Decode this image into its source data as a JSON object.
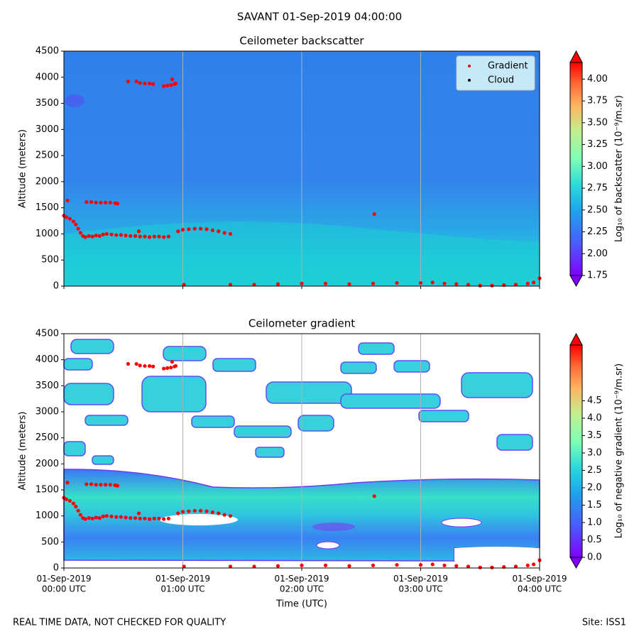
{
  "title": "SAVANT 01-Sep-2019 04:00:00",
  "footer_left": "REAL TIME DATA, NOT CHECKED FOR QUALITY",
  "footer_right": "Site: ISS1",
  "chart_data": [
    {
      "type": "scatter",
      "title": "Ceilometer backscatter",
      "ylabel": "Altitude (meters)",
      "xlim": [
        0,
        4
      ],
      "xticks": [
        0,
        1,
        2,
        3,
        4
      ],
      "xtick_labels": false,
      "xgrid": true,
      "ylim": [
        0,
        4500
      ],
      "yticks": [
        0,
        500,
        1000,
        1500,
        2000,
        2500,
        3000,
        3500,
        4000,
        4500
      ],
      "legend": "upper right",
      "colorbar": {
        "label": "Log₁₀ of backscatter (10⁻⁹/m.sr)",
        "lim": [
          1.75,
          4.19
        ],
        "ticks": [
          1.75,
          {
            "value": 2,
            "label": "2.00"
          },
          2.25,
          {
            "value": 2.5,
            "label": "2.50"
          },
          2.75,
          {
            "value": 3,
            "label": "3.00"
          },
          3.25,
          {
            "value": 3.5,
            "label": "3.50"
          },
          3.75,
          {
            "value": 4,
            "label": "4.00"
          }
        ]
      },
      "series": [
        {
          "name": "Gradient",
          "color": "#ff0000",
          "x": [
            0.03,
            0.0,
            0.02,
            0.05,
            0.08,
            0.1,
            0.12,
            0.14,
            0.16,
            0.18,
            0.21,
            0.24,
            0.27,
            0.3,
            0.33,
            0.36,
            0.4,
            0.44,
            0.48,
            0.52,
            0.56,
            0.6,
            0.64,
            0.68,
            0.72,
            0.76,
            0.8,
            0.84,
            0.88,
            0.63,
            0.19,
            0.23,
            0.27,
            0.31,
            0.35,
            0.39,
            0.43,
            0.45,
            0.54,
            0.61,
            0.64,
            0.68,
            0.72,
            0.75,
            0.84,
            0.87,
            0.9,
            0.93,
            0.94,
            0.91,
            0.96,
            1.0,
            1.05,
            1.1,
            1.15,
            1.2,
            1.25,
            1.3,
            1.35,
            1.4,
            1.01,
            2.61,
            1.4,
            1.6,
            1.8,
            2.0,
            2.2,
            2.4,
            2.6,
            2.8,
            3.0,
            3.1,
            3.2,
            3.3,
            3.4,
            3.5,
            3.6,
            3.7,
            3.8,
            3.9,
            3.95,
            4.0
          ],
          "values": [
            1640,
            1350,
            1320,
            1290,
            1240,
            1180,
            1100,
            1020,
            960,
            940,
            960,
            950,
            970,
            960,
            990,
            1000,
            990,
            980,
            980,
            970,
            960,
            960,
            950,
            950,
            940,
            950,
            950,
            940,
            950,
            1050,
            1610,
            1610,
            1600,
            1600,
            1600,
            1600,
            1590,
            1580,
            3920,
            3920,
            3890,
            3880,
            3880,
            3870,
            3830,
            3840,
            3850,
            3870,
            3880,
            3960,
            1050,
            1080,
            1090,
            1100,
            1100,
            1090,
            1070,
            1050,
            1020,
            1000,
            30,
            1380,
            30,
            30,
            40,
            50,
            50,
            40,
            50,
            60,
            60,
            70,
            50,
            40,
            30,
            10,
            10,
            20,
            30,
            50,
            70,
            150
          ]
        },
        {
          "name": "Cloud",
          "color": "#000000",
          "x": [],
          "values": []
        }
      ]
    },
    {
      "type": "scatter",
      "title": "Ceilometer gradient",
      "ylabel": "Altitude (meters)",
      "xlabel": "Time (UTC)",
      "xlim": [
        0,
        4
      ],
      "xticks": [
        {
          "value": 0,
          "label": "01-Sep-2019\n00:00 UTC"
        },
        {
          "value": 1,
          "label": "01-Sep-2019\n01:00 UTC"
        },
        {
          "value": 2,
          "label": "01-Sep-2019\n02:00 UTC"
        },
        {
          "value": 3,
          "label": "01-Sep-2019\n03:00 UTC"
        },
        {
          "value": 4,
          "label": "01-Sep-2019\n04:00 UTC"
        }
      ],
      "xgrid": true,
      "ylim": [
        0,
        4500
      ],
      "yticks": [
        0,
        500,
        1000,
        1500,
        2000,
        2500,
        3000,
        3500,
        4000,
        4500
      ],
      "colorbar": {
        "label": "Log₁₀ of negative gradient (10⁻⁹/m.sr)",
        "lim": [
          0,
          6.1
        ],
        "ticks": [
          {
            "value": 0,
            "label": "0.0"
          },
          0.5,
          {
            "value": 1,
            "label": "1.0"
          },
          1.5,
          {
            "value": 2,
            "label": "2.0"
          },
          2.5,
          {
            "value": 3,
            "label": "3.0"
          },
          3.5,
          {
            "value": 4,
            "label": "4.0"
          },
          4.5
        ]
      },
      "series": [
        {
          "name": "Gradient",
          "color": "#ff0000",
          "x": [
            0.03,
            0.0,
            0.02,
            0.05,
            0.08,
            0.1,
            0.12,
            0.14,
            0.16,
            0.18,
            0.21,
            0.24,
            0.27,
            0.3,
            0.33,
            0.36,
            0.4,
            0.44,
            0.48,
            0.52,
            0.56,
            0.6,
            0.64,
            0.68,
            0.72,
            0.76,
            0.8,
            0.84,
            0.88,
            0.63,
            0.19,
            0.23,
            0.27,
            0.31,
            0.35,
            0.39,
            0.43,
            0.45,
            0.54,
            0.61,
            0.64,
            0.68,
            0.72,
            0.75,
            0.84,
            0.87,
            0.9,
            0.93,
            0.94,
            0.91,
            0.96,
            1.0,
            1.05,
            1.1,
            1.15,
            1.2,
            1.25,
            1.3,
            1.35,
            1.4,
            1.01,
            2.61,
            1.4,
            1.6,
            1.8,
            2.0,
            2.2,
            2.4,
            2.6,
            2.8,
            3.0,
            3.1,
            3.2,
            3.3,
            3.4,
            3.5,
            3.6,
            3.7,
            3.8,
            3.9,
            3.95,
            4.0
          ],
          "values": [
            1640,
            1350,
            1320,
            1290,
            1240,
            1180,
            1100,
            1020,
            960,
            940,
            960,
            950,
            970,
            960,
            990,
            1000,
            990,
            980,
            980,
            970,
            960,
            960,
            950,
            950,
            940,
            950,
            950,
            940,
            950,
            1050,
            1610,
            1610,
            1600,
            1600,
            1600,
            1600,
            1590,
            1580,
            3920,
            3920,
            3890,
            3880,
            3880,
            3870,
            3830,
            3840,
            3850,
            3870,
            3880,
            3960,
            1050,
            1080,
            1090,
            1100,
            1100,
            1090,
            1070,
            1050,
            1020,
            1000,
            30,
            1380,
            30,
            30,
            40,
            50,
            50,
            40,
            50,
            60,
            60,
            70,
            50,
            40,
            30,
            10,
            10,
            20,
            30,
            50,
            70,
            150
          ]
        }
      ]
    }
  ]
}
